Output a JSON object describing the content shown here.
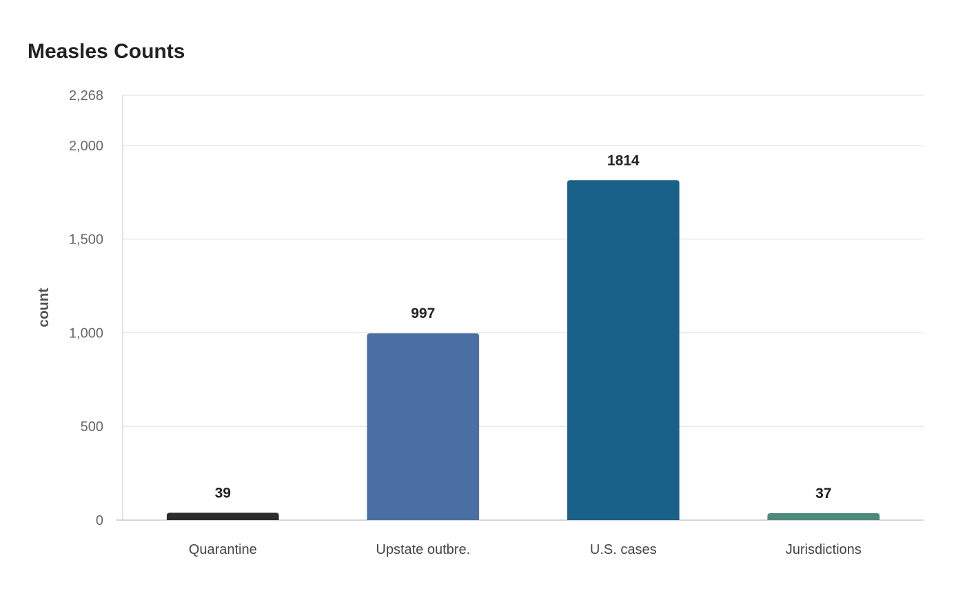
{
  "chart_data": {
    "type": "bar",
    "title": "Measles Counts",
    "xlabel": "",
    "ylabel": "count",
    "categories": [
      "Quarantine",
      "Upstate outbre.",
      "U.S. cases",
      "Jurisdictions"
    ],
    "values": [
      39,
      997,
      1814,
      37
    ],
    "colors": [
      "#2b2b2b",
      "#4a6fa5",
      "#1a6189",
      "#4d8a7a"
    ],
    "ylim": [
      0,
      2268
    ],
    "yticks": [
      0,
      500,
      1000,
      1500,
      2000,
      2268
    ],
    "ytick_labels": [
      "0",
      "500",
      "1,000",
      "1,500",
      "2,000",
      "2,268"
    ],
    "grid": true,
    "data_labels": [
      "39",
      "997",
      "1814",
      "37"
    ]
  }
}
